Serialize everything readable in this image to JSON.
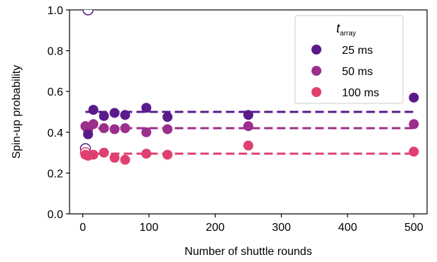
{
  "chart_data": {
    "type": "scatter",
    "xlabel": "Number of shuttle rounds",
    "ylabel": "Spin-up probability",
    "xlim": [
      -20,
      520
    ],
    "ylim": [
      0.0,
      1.0
    ],
    "x_ticks": [
      0,
      100,
      200,
      300,
      400,
      500
    ],
    "x_tick_labels": [
      "0",
      "100",
      "200",
      "300",
      "400",
      "500"
    ],
    "y_ticks": [
      0.0,
      0.2,
      0.4,
      0.6,
      0.8,
      1.0
    ],
    "y_tick_labels": [
      "0.0",
      "0.2",
      "0.4",
      "0.6",
      "0.8",
      "1.0"
    ],
    "grid": false,
    "legend": {
      "placement": "top-right",
      "title_main": "t",
      "title_sub": "array"
    },
    "series": [
      {
        "name": "25 ms",
        "color": "#5b1a8c",
        "fit_level": 0.5,
        "points": [
          {
            "x": 8,
            "y": 0.39
          },
          {
            "x": 16,
            "y": 0.51
          },
          {
            "x": 32,
            "y": 0.48
          },
          {
            "x": 48,
            "y": 0.495
          },
          {
            "x": 64,
            "y": 0.485
          },
          {
            "x": 96,
            "y": 0.52
          },
          {
            "x": 128,
            "y": 0.475
          },
          {
            "x": 250,
            "y": 0.485
          },
          {
            "x": 500,
            "y": 0.57
          }
        ]
      },
      {
        "name": "50 ms",
        "color": "#9c2e8c",
        "fit_level": 0.42,
        "points": [
          {
            "x": 4,
            "y": 0.43
          },
          {
            "x": 8,
            "y": 0.41
          },
          {
            "x": 16,
            "y": 0.44
          },
          {
            "x": 32,
            "y": 0.42
          },
          {
            "x": 48,
            "y": 0.415
          },
          {
            "x": 64,
            "y": 0.42
          },
          {
            "x": 96,
            "y": 0.4
          },
          {
            "x": 128,
            "y": 0.415
          },
          {
            "x": 250,
            "y": 0.43
          },
          {
            "x": 500,
            "y": 0.44
          }
        ]
      },
      {
        "name": "100 ms",
        "color": "#e04070",
        "fit_level": 0.295,
        "points": [
          {
            "x": 4,
            "y": 0.29
          },
          {
            "x": 8,
            "y": 0.285
          },
          {
            "x": 16,
            "y": 0.29
          },
          {
            "x": 32,
            "y": 0.3
          },
          {
            "x": 48,
            "y": 0.275
          },
          {
            "x": 64,
            "y": 0.265
          },
          {
            "x": 96,
            "y": 0.295
          },
          {
            "x": 128,
            "y": 0.29
          },
          {
            "x": 250,
            "y": 0.335
          },
          {
            "x": 500,
            "y": 0.305
          }
        ]
      }
    ],
    "open_markers": [
      {
        "x": 8,
        "y": 1.0,
        "color": "#5b1a8c"
      },
      {
        "x": 4,
        "y": 0.32,
        "color": "#5b1a8c"
      },
      {
        "x": 4,
        "y": 0.3,
        "color": "#e04070"
      }
    ]
  }
}
